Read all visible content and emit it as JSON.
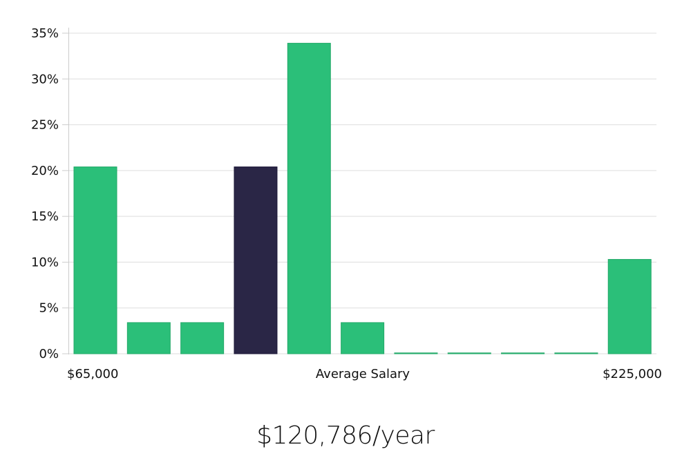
{
  "chart_data": {
    "type": "bar",
    "title": "",
    "xlabel": "Average Salary",
    "ylabel": "",
    "ylim": [
      0,
      35
    ],
    "yticks": [
      0,
      5,
      10,
      15,
      20,
      25,
      30,
      35
    ],
    "ytick_labels": [
      "0%",
      "5%",
      "10%",
      "15%",
      "20%",
      "25%",
      "30%",
      "35%"
    ],
    "x_range_labels": {
      "min": "$65,000",
      "max": "$225,000"
    },
    "categories": [
      "Bin 1",
      "Bin 2",
      "Bin 3",
      "Bin 4",
      "Bin 5",
      "Bin 6",
      "Bin 7",
      "Bin 8",
      "Bin 9",
      "Bin 10",
      "Bin 11"
    ],
    "values": [
      20.4,
      3.4,
      3.4,
      20.4,
      33.9,
      3.4,
      0,
      0,
      0,
      0,
      10.3
    ],
    "highlight_index": 3,
    "grid": true,
    "legend": "none",
    "colors": {
      "bar": "#2bbf79",
      "bar_edge": "#23a868",
      "highlight": "#2a2646",
      "highlight_edge": "#1c1838",
      "grid": "#dddddd",
      "axis": "#cccccc"
    }
  },
  "summary": {
    "average_salary": "$120,786/year"
  }
}
